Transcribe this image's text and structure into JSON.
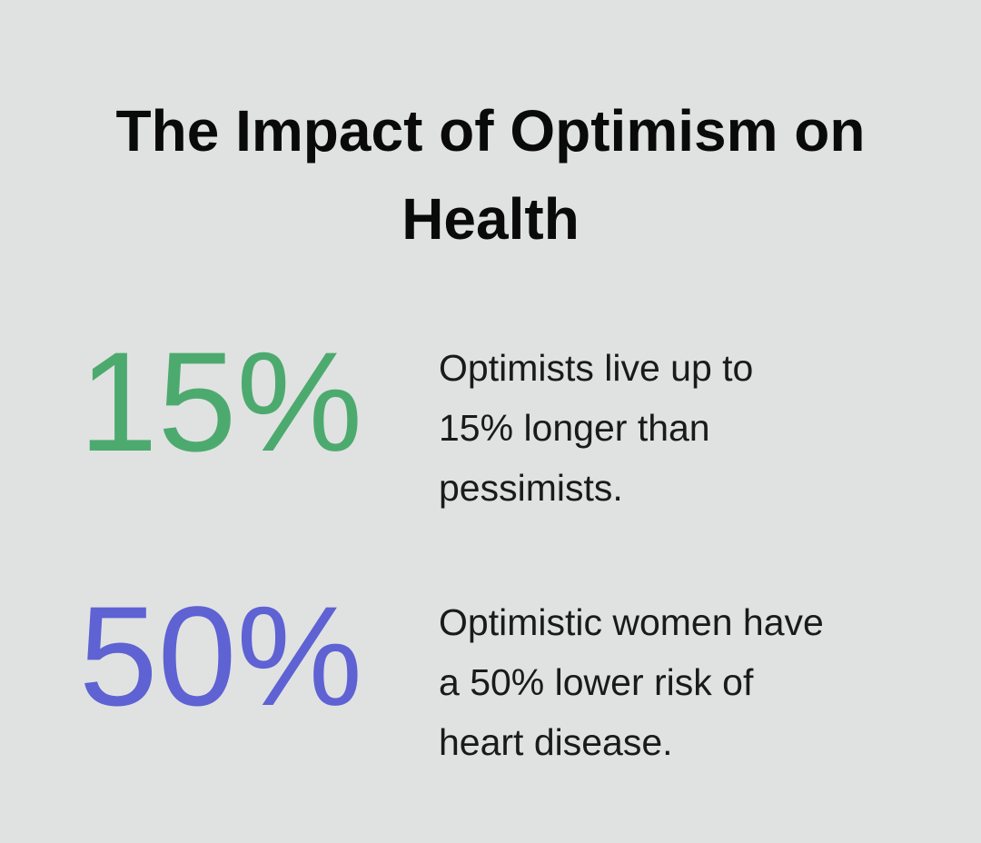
{
  "title": "The Impact of Optimism on Health",
  "stats": [
    {
      "figure": "15%",
      "color": "#4daa6f",
      "description": [
        "Optimists live up to",
        "15% longer than",
        "pessimists."
      ]
    },
    {
      "figure": "50%",
      "color": "#5e62d3",
      "description": [
        "Optimistic women have",
        "a 50% lower risk of",
        "heart disease."
      ]
    }
  ]
}
